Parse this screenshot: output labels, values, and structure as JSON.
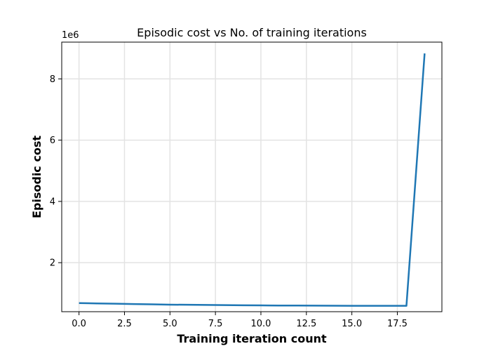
{
  "chart_data": {
    "type": "line",
    "title": "Episodic cost vs No. of training iterations",
    "xlabel": "Training iteration count",
    "ylabel": "Episodic cost",
    "y_offset_label": "1e6",
    "xlim": [
      -0.95,
      19.95
    ],
    "ylim": [
      0.4,
      9.2
    ],
    "x_ticks": [
      0.0,
      2.5,
      5.0,
      7.5,
      10.0,
      12.5,
      15.0,
      17.5
    ],
    "x_tick_labels": [
      "0.0",
      "2.5",
      "5.0",
      "7.5",
      "10.0",
      "12.5",
      "15.0",
      "17.5"
    ],
    "y_ticks": [
      2,
      4,
      6,
      8
    ],
    "y_tick_labels": [
      "2",
      "4",
      "6",
      "8"
    ],
    "grid": true,
    "series": [
      {
        "color": "#1f77b4",
        "x": [
          0,
          1,
          2,
          3,
          4,
          5,
          6,
          7,
          8,
          9,
          10,
          11,
          12,
          13,
          14,
          15,
          16,
          17,
          18,
          19
        ],
        "y": [
          0.68,
          0.67,
          0.66,
          0.65,
          0.64,
          0.63,
          0.625,
          0.62,
          0.615,
          0.61,
          0.605,
          0.6,
          0.6,
          0.597,
          0.595,
          0.593,
          0.592,
          0.592,
          0.592,
          8.83
        ]
      }
    ]
  }
}
